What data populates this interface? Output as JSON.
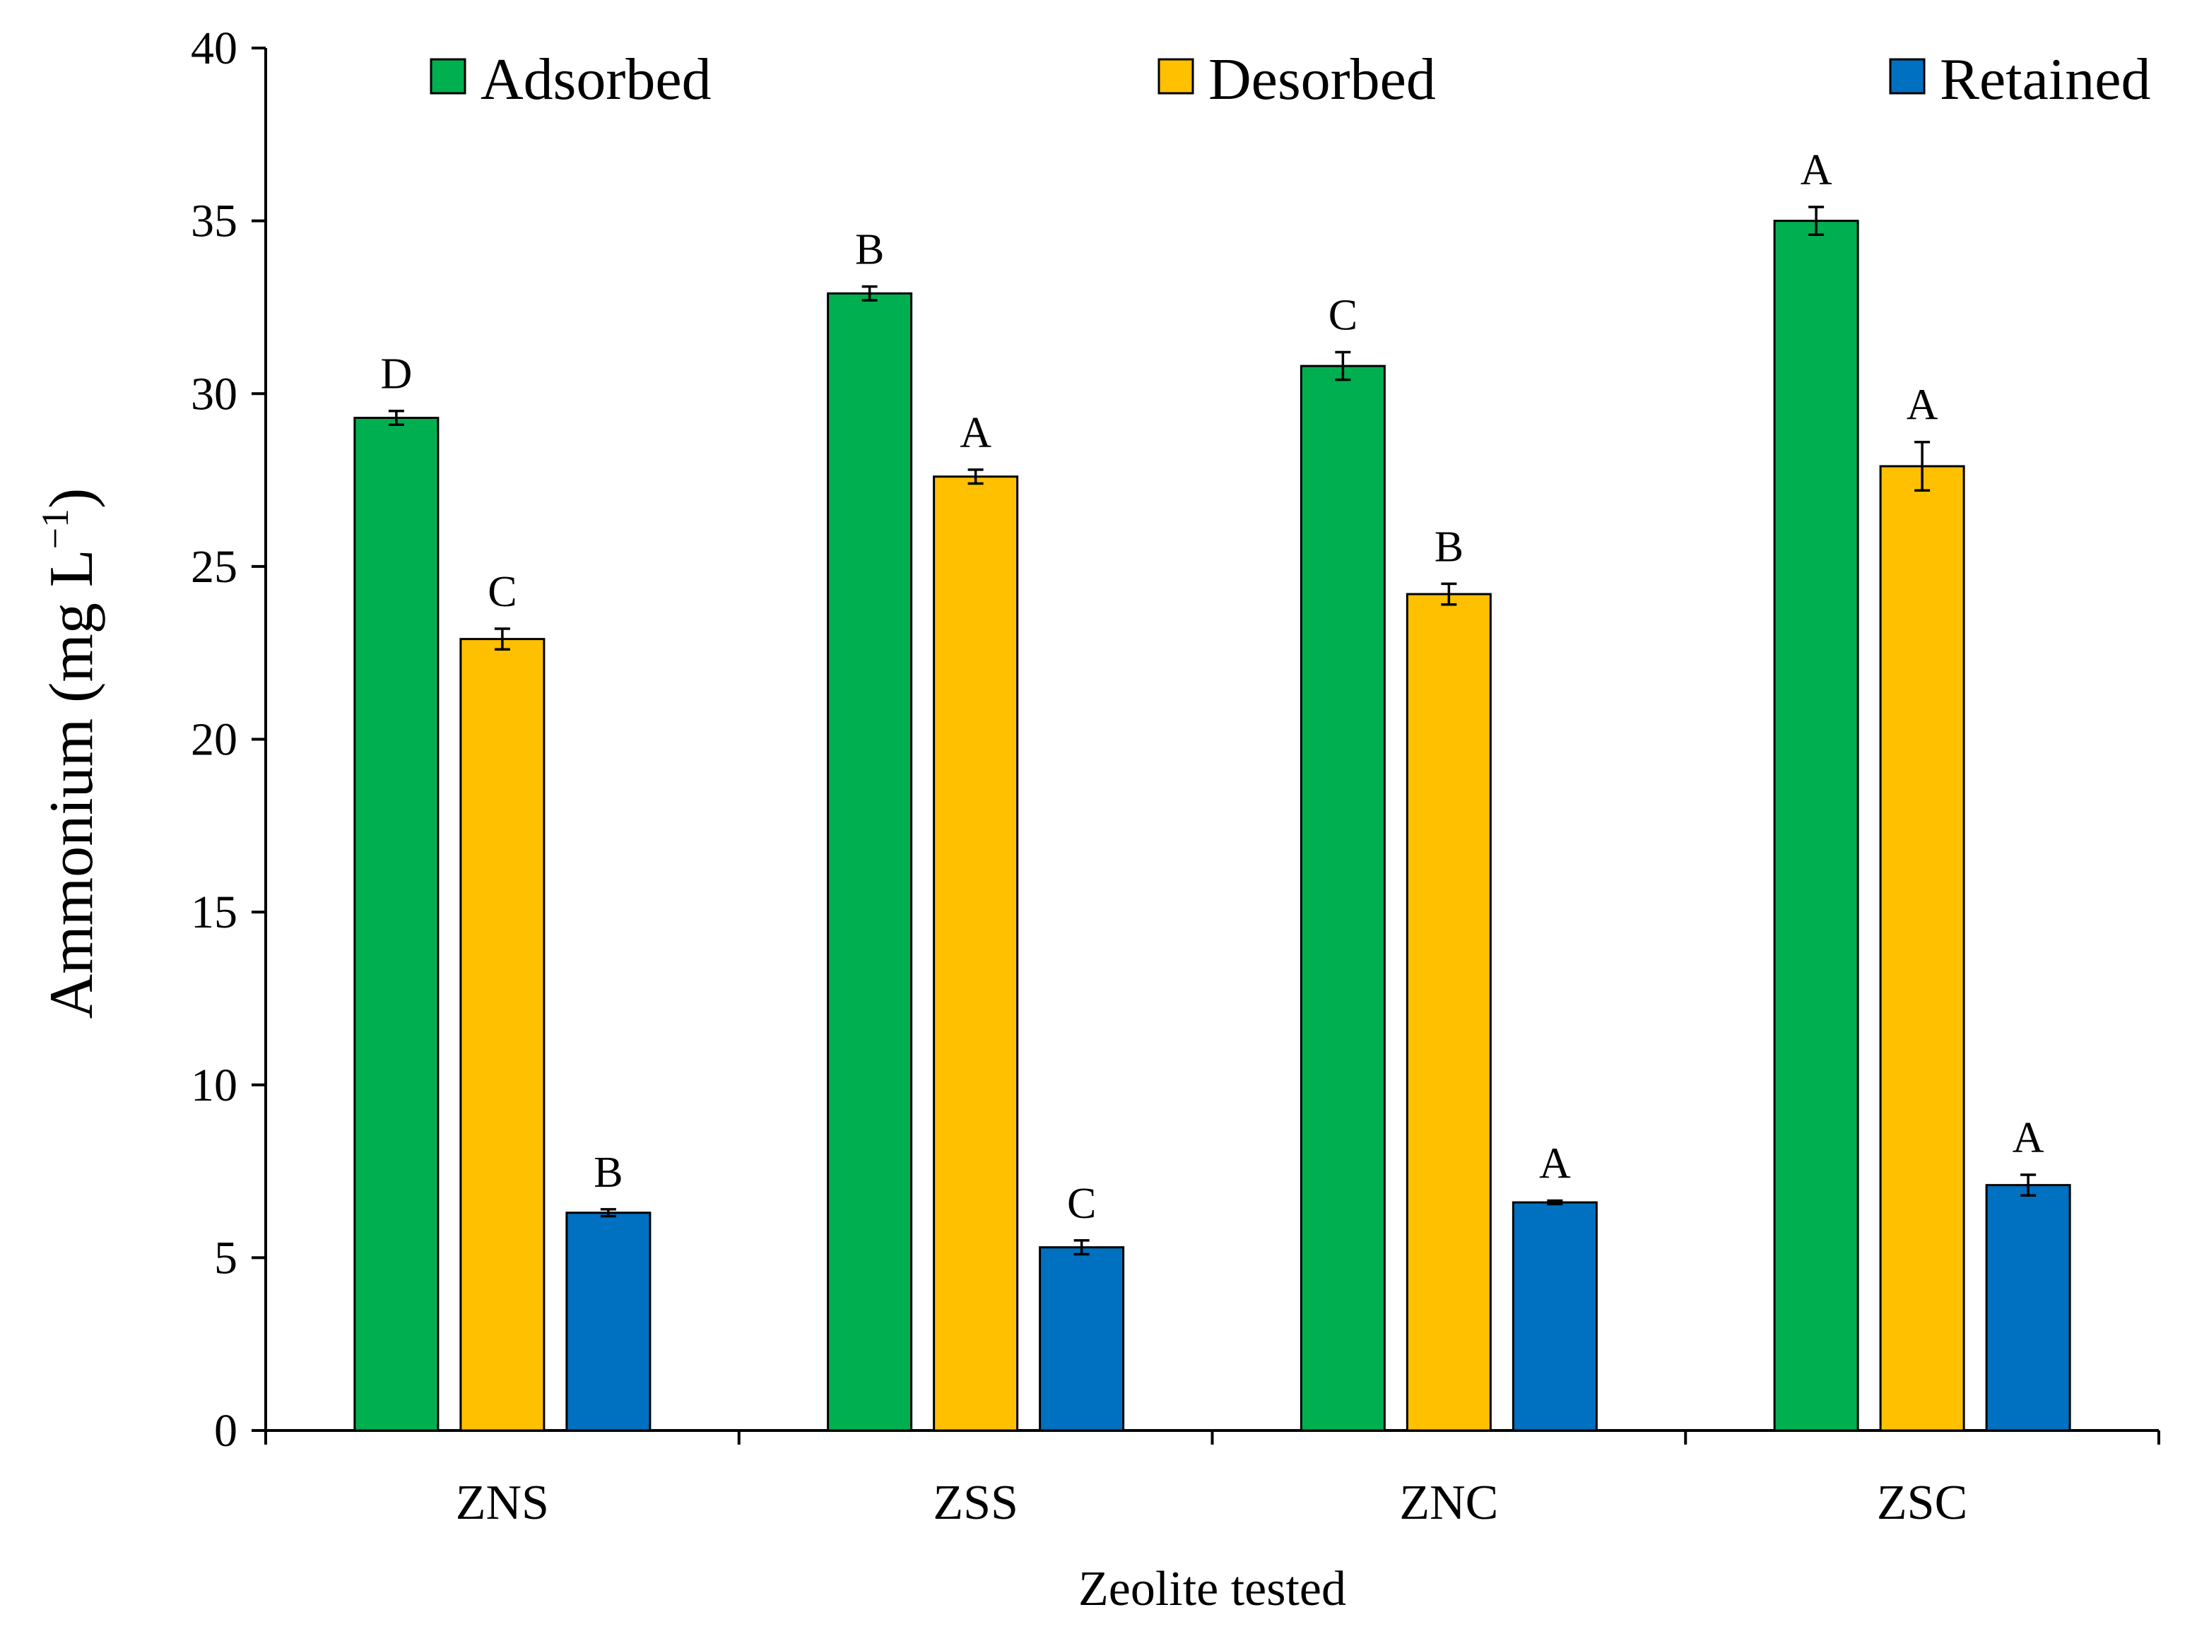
{
  "chart_data": {
    "type": "bar",
    "title": "",
    "xlabel": "Zeolite tested",
    "ylabel": "Ammonium (mg L",
    "ylabel_sup": "−1",
    "ylabel_close": ")",
    "ylim": [
      0,
      40
    ],
    "yticks": [
      0,
      5,
      10,
      15,
      20,
      25,
      30,
      35,
      40
    ],
    "ytick_labels": [
      "0",
      "5",
      "10",
      "15",
      "20",
      "25",
      "30",
      "35",
      "40"
    ],
    "categories": [
      "ZNS",
      "ZSS",
      "ZNC",
      "ZSC"
    ],
    "legend_position": "top",
    "series": [
      {
        "name": "Adsorbed",
        "color": "#00B050",
        "values": [
          29.3,
          32.9,
          30.8,
          35.0
        ],
        "errors": [
          0.2,
          0.2,
          0.4,
          0.4
        ],
        "letters": [
          "D",
          "B",
          "C",
          "A"
        ]
      },
      {
        "name": "Desorbed",
        "color": "#FFC000",
        "values": [
          22.9,
          27.6,
          24.2,
          27.9
        ],
        "errors": [
          0.3,
          0.2,
          0.3,
          0.7
        ],
        "letters": [
          "C",
          "A",
          "B",
          "A"
        ]
      },
      {
        "name": "Retained",
        "color": "#0070C0",
        "values": [
          6.3,
          5.3,
          6.6,
          7.1
        ],
        "errors": [
          0.1,
          0.2,
          0.05,
          0.3
        ],
        "letters": [
          "B",
          "C",
          "A",
          "A"
        ]
      }
    ]
  }
}
